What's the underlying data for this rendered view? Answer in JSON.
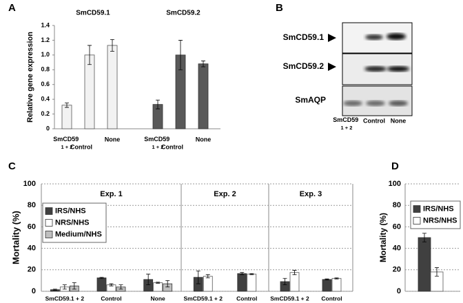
{
  "chart_data": [
    {
      "type": "bar",
      "label": "A",
      "ylabel": "Relative gene expression",
      "ylim": [
        0,
        1.4
      ],
      "yticks": [
        0,
        0.2,
        0.4,
        0.6,
        0.8,
        {
          "value": 1,
          "label": "1.0"
        },
        1.2,
        1.4
      ],
      "groups": [
        {
          "name": "SmCD59.1",
          "color": "#f2f2f2",
          "categories": [
            "SmCD59 1 + 2",
            "Control",
            "None"
          ],
          "values": [
            0.32,
            1.0,
            1.13
          ],
          "errors": [
            0.03,
            0.13,
            0.08
          ]
        },
        {
          "name": "SmCD59.2",
          "color": "#595959",
          "categories": [
            "SmCD59 1 + 2",
            "Control",
            "None"
          ],
          "values": [
            0.33,
            1.0,
            0.88
          ],
          "errors": [
            0.06,
            0.2,
            0.04
          ]
        }
      ]
    },
    {
      "type": "grouped-bar",
      "label": "C",
      "ylabel": "Mortality (%)",
      "ylim": [
        0,
        100
      ],
      "yticks": [
        0,
        20,
        40,
        60,
        80,
        100
      ],
      "grid": true,
      "series": [
        {
          "name": "IRS/NHS",
          "color": "#404040"
        },
        {
          "name": "NRS/NHS",
          "color": "#ffffff"
        },
        {
          "name": "Medium/NHS",
          "color": "#bfbfbf"
        }
      ],
      "panels": [
        {
          "title": "Exp. 1",
          "categories": [
            "SmCD59.1 + 2",
            "Control",
            "None"
          ],
          "series": [
            {
              "values": [
                1.5,
                12.5,
                11
              ],
              "errors": [
                0.5,
                0.5,
                5
              ]
            },
            {
              "values": [
                4,
                6,
                8
              ],
              "errors": [
                2,
                1,
                0.5
              ]
            },
            {
              "values": [
                5,
                4,
                7
              ],
              "errors": [
                3,
                2,
                3
              ]
            }
          ]
        },
        {
          "title": "Exp. 2",
          "categories": [
            "SmCD59.1 + 2",
            "Control"
          ],
          "series": [
            {
              "values": [
                13,
                16.5
              ],
              "errors": [
                6,
                1
              ]
            },
            {
              "values": [
                14,
                16
              ],
              "errors": [
                1.5,
                0.5
              ]
            }
          ]
        },
        {
          "title": "Exp. 3",
          "categories": [
            "SmCD59.1 + 2",
            "Control"
          ],
          "series": [
            {
              "values": [
                9,
                11
              ],
              "errors": [
                3,
                0.5
              ]
            },
            {
              "values": [
                17.5,
                12
              ],
              "errors": [
                2,
                0.5
              ]
            }
          ]
        }
      ]
    },
    {
      "type": "bar",
      "label": "D",
      "ylabel": "Mortality (%)",
      "ylim": [
        0,
        100
      ],
      "yticks": [
        0,
        20,
        40,
        60,
        80,
        100
      ],
      "grid": true,
      "series": [
        {
          "name": "IRS/NHS",
          "color": "#404040",
          "values": [
            50
          ],
          "errors": [
            4
          ]
        },
        {
          "name": "NRS/NHS",
          "color": "#ffffff",
          "values": [
            18
          ],
          "errors": [
            4
          ]
        }
      ]
    }
  ],
  "blot": {
    "label": "B",
    "bands": [
      "SmCD59.1",
      "SmCD59.2",
      "SmAQP"
    ],
    "lanes": [
      "SmCD59 1 + 2",
      "Control",
      "None"
    ]
  }
}
